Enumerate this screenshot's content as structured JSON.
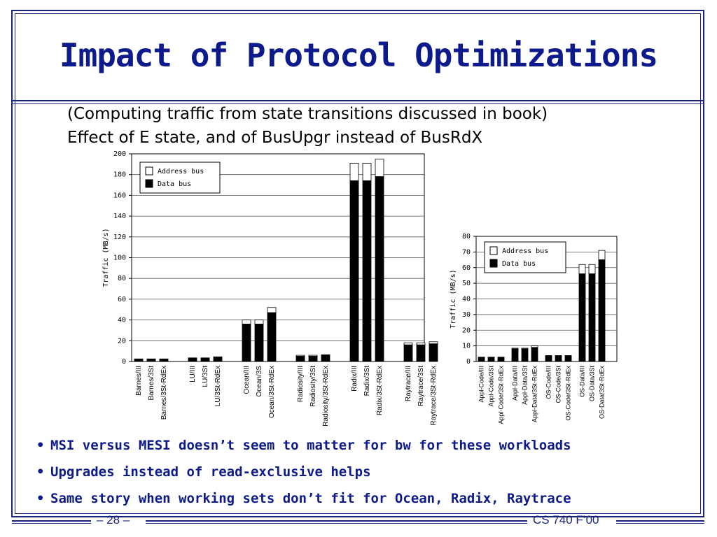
{
  "slide": {
    "title": "Impact of Protocol Optimizations",
    "subtitle_line1": "(Computing traffic from state transitions discussed in book)",
    "subtitle_line2": "Effect of E state, and of BusUpgr instead of BusRdX",
    "bullets": [
      "MSI versus MESI doesn’t seem to matter for bw for these workloads",
      "Upgrades instead of read-exclusive helps",
      "Same story when working sets don’t fit for Ocean, Radix, Raytrace"
    ],
    "bullet_glyph": "•",
    "footer_page": "– 28 –",
    "footer_course": "CS 740 F’00",
    "accent_color": "#0d1a8c"
  },
  "chart_data": [
    {
      "type": "bar",
      "stacked": true,
      "ylabel": "Traffic (MB/s)",
      "ylim": [
        0,
        200
      ],
      "yticks": [
        0,
        20,
        40,
        60,
        80,
        100,
        120,
        140,
        160,
        180,
        200
      ],
      "grid": true,
      "legend_position": "top-left",
      "categories": [
        "Barnes/III",
        "Barnes/3St",
        "Barnes/3St-RdEx",
        "LU/III",
        "LU/3St",
        "LU/3St-RdEx",
        "Ocean/III",
        "Ocean/3S",
        "Ocean/3St-RdEx",
        "Radiosity/III",
        "Radiosity/3St",
        "Radiosity/3St-RdEx",
        "Radix/III",
        "Radix/3St",
        "Radix/3St-RdEx",
        "Raytrace/III",
        "Raytrace/3St",
        "Raytrace/3St-RdEx"
      ],
      "groups": [
        3,
        3,
        3,
        3,
        3,
        3
      ],
      "series": [
        {
          "name": "Data bus",
          "color": "#000000",
          "values": [
            2,
            2,
            2,
            3,
            3,
            4,
            36,
            36,
            47,
            5,
            5,
            6,
            174,
            174,
            178,
            16,
            16,
            17
          ]
        },
        {
          "name": "Address bus",
          "color": "#ffffff",
          "values": [
            0.5,
            0.5,
            0.5,
            0.5,
            0.5,
            0.5,
            4,
            4,
            5,
            1,
            1,
            0.5,
            17,
            17,
            17,
            2,
            2,
            2
          ]
        }
      ]
    },
    {
      "type": "bar",
      "stacked": true,
      "ylabel": "Traffic (MB/s)",
      "ylim": [
        0,
        80
      ],
      "yticks": [
        0,
        10,
        20,
        30,
        40,
        50,
        60,
        70,
        80
      ],
      "grid": true,
      "legend_position": "top-left",
      "categories": [
        "Appl-Code/III",
        "Appl-Code/3St",
        "Appl-Code/3St-RdEx",
        "Appl-Data/III",
        "Appl-Data/3St",
        "Appl-Data/3St-RdEx",
        "OS-Code/III",
        "OS-Code/3St",
        "OS-Code/3St-RdEx",
        "OS-Data/III",
        "OS-Data/3St",
        "OS-Data/3St-RdEx"
      ],
      "groups": [
        3,
        3,
        3,
        3
      ],
      "series": [
        {
          "name": "Data bus",
          "color": "#000000",
          "values": [
            2.5,
            2.5,
            2.5,
            8,
            8,
            9,
            3.5,
            3.5,
            3.5,
            56,
            56,
            65
          ]
        },
        {
          "name": "Address bus",
          "color": "#ffffff",
          "values": [
            0.3,
            0.3,
            0.3,
            0.5,
            0.5,
            1,
            0.3,
            0.3,
            0.3,
            6,
            6,
            6
          ]
        }
      ]
    }
  ]
}
